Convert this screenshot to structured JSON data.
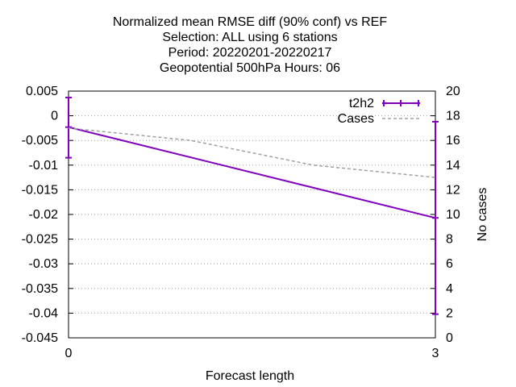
{
  "chart_data": {
    "type": "line",
    "title_lines": [
      "Normalized mean RMSE diff (90% conf) vs REF",
      "Selection: ALL using     6 stations",
      "Period: 20220201-20220217",
      "Geopotential 500hPa   Hours:  06"
    ],
    "xlabel": "Forecast length",
    "ylabel": "",
    "y2label": "No cases",
    "x_ticks": [
      0,
      3
    ],
    "xlim": [
      0,
      3
    ],
    "ylim": [
      -0.045,
      0.005
    ],
    "y_ticks": [
      0.005,
      0,
      -0.005,
      -0.01,
      -0.015,
      -0.02,
      -0.025,
      -0.03,
      -0.035,
      -0.04,
      -0.045
    ],
    "y_tick_labels": [
      "0.005",
      "0",
      "-0.005",
      "-0.01",
      "-0.015",
      "-0.02",
      "-0.025",
      "-0.03",
      "-0.035",
      "-0.04",
      "-0.045"
    ],
    "y2lim": [
      0,
      20
    ],
    "y2_ticks": [
      0,
      2,
      4,
      6,
      8,
      10,
      12,
      14,
      16,
      18,
      20
    ],
    "grid": true,
    "legend_position": "top-right",
    "series": [
      {
        "name": "t2h2",
        "axis": "y",
        "color": "#8000c0",
        "style": "linespoints-errorbars",
        "x": [
          0,
          3
        ],
        "y": [
          -0.0023,
          -0.0207
        ],
        "err_low": [
          -0.0085,
          -0.0402
        ],
        "err_high": [
          0.0037,
          -0.0012
        ]
      },
      {
        "name": "Cases",
        "axis": "y2",
        "color": "#a0a0a0",
        "style": "dashed",
        "x": [
          0,
          0.5,
          1,
          1.5,
          2,
          2.5,
          3
        ],
        "y": [
          17,
          16.5,
          16,
          15,
          14,
          13.5,
          13
        ]
      }
    ]
  }
}
